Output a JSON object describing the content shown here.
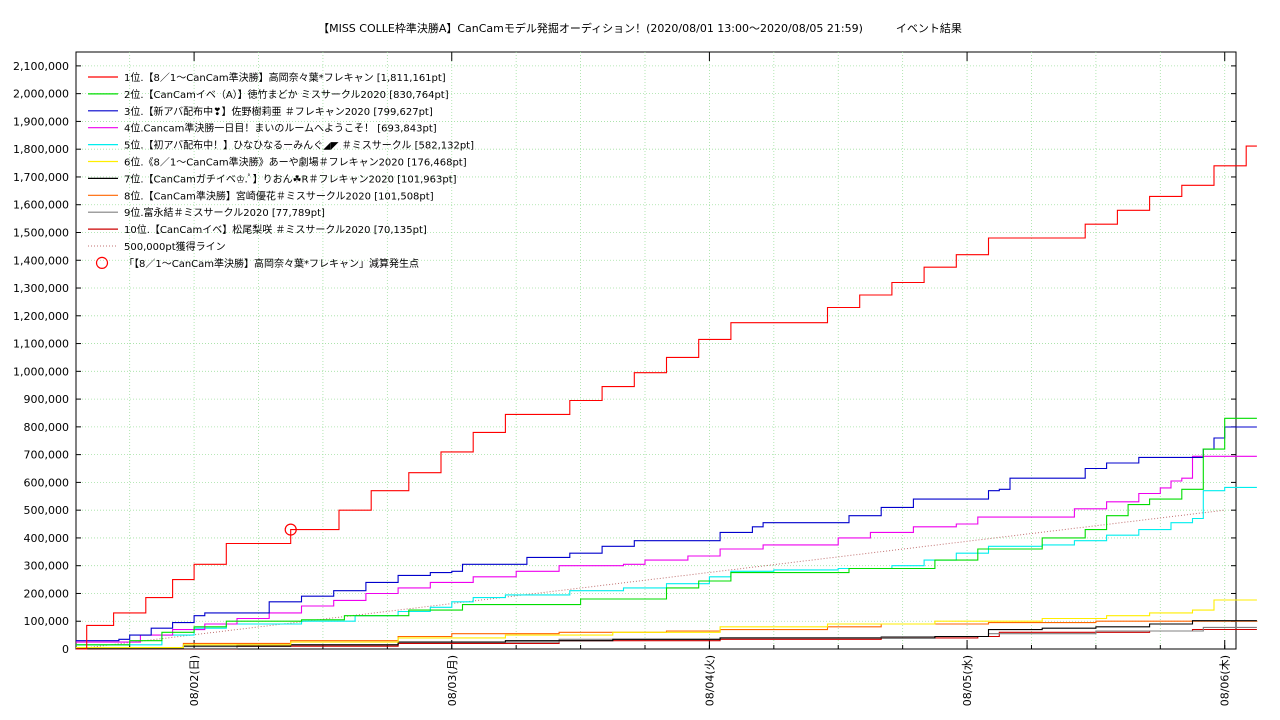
{
  "title": "【MISS COLLE枠準決勝A】CanCamモデル発掘オーディション！(2020/08/01 13:00～2020/08/05 21:59)　　　イベント結果",
  "chart_data": {
    "type": "line",
    "ylim": [
      0,
      2150000
    ],
    "y_ticks": [
      "0",
      "100,000",
      "200,000",
      "300,000",
      "400,000",
      "500,000",
      "600,000",
      "700,000",
      "800,000",
      "900,000",
      "1,000,000",
      "1,100,000",
      "1,200,000",
      "1,300,000",
      "1,400,000",
      "1,500,000",
      "1,600,000",
      "1,700,000",
      "1,800,000",
      "1,900,000",
      "2,000,000",
      "2,100,000"
    ],
    "x_ticks": [
      {
        "label": "08/02(日)",
        "t": 11
      },
      {
        "label": "08/03(月)",
        "t": 35
      },
      {
        "label": "08/04(火)",
        "t": 59
      },
      {
        "label": "08/05(水)",
        "t": 83
      },
      {
        "label": "08/06(木)",
        "t": 107
      }
    ],
    "x_range_hours": [
      0,
      107
    ],
    "grid": true,
    "legend_position": "top-left",
    "series": [
      {
        "name": "1位.【8／1～CanCam準決勝】高岡奈々葉*フレキャン [1,811,161pt]",
        "color": "#ff0000",
        "values": [
          [
            0,
            0
          ],
          [
            1,
            85000
          ],
          [
            3,
            85000
          ],
          [
            3.5,
            130000
          ],
          [
            6,
            130000
          ],
          [
            6.5,
            185000
          ],
          [
            8,
            185000
          ],
          [
            9,
            250000
          ],
          [
            10,
            250000
          ],
          [
            11,
            305000
          ],
          [
            13,
            305000
          ],
          [
            14,
            380000
          ],
          [
            20,
            380000
          ],
          [
            20,
            430000
          ],
          [
            24,
            430000
          ],
          [
            24.5,
            500000
          ],
          [
            27,
            500000
          ],
          [
            27.5,
            570000
          ],
          [
            30,
            570000
          ],
          [
            31,
            635000
          ],
          [
            33,
            635000
          ],
          [
            34,
            710000
          ],
          [
            36,
            710000
          ],
          [
            37,
            780000
          ],
          [
            39,
            780000
          ],
          [
            40,
            845000
          ],
          [
            45,
            845000
          ],
          [
            46,
            895000
          ],
          [
            48,
            895000
          ],
          [
            49,
            945000
          ],
          [
            51,
            945000
          ],
          [
            52,
            995000
          ],
          [
            54,
            995000
          ],
          [
            55,
            1050000
          ],
          [
            57,
            1050000
          ],
          [
            58,
            1115000
          ],
          [
            60,
            1115000
          ],
          [
            61,
            1175000
          ],
          [
            69,
            1175000
          ],
          [
            70,
            1230000
          ],
          [
            72,
            1230000
          ],
          [
            73,
            1275000
          ],
          [
            75,
            1275000
          ],
          [
            76,
            1320000
          ],
          [
            78,
            1320000
          ],
          [
            79,
            1375000
          ],
          [
            81,
            1375000
          ],
          [
            82,
            1420000
          ],
          [
            84,
            1420000
          ],
          [
            85,
            1480000
          ],
          [
            93,
            1480000
          ],
          [
            94,
            1530000
          ],
          [
            96,
            1530000
          ],
          [
            97,
            1580000
          ],
          [
            99,
            1580000
          ],
          [
            100,
            1630000
          ],
          [
            102,
            1630000
          ],
          [
            103,
            1670000
          ],
          [
            105,
            1670000
          ],
          [
            106,
            1740000
          ],
          [
            108,
            1740000
          ],
          [
            109,
            1811161
          ],
          [
            110,
            1811161
          ]
        ]
      },
      {
        "name": "2位.【CanCamイベ（A）】徳竹まどか ミスサークル2020 [830,764pt]",
        "color": "#00dd00",
        "values": [
          [
            0,
            15000
          ],
          [
            5,
            30000
          ],
          [
            8,
            60000
          ],
          [
            11,
            80000
          ],
          [
            14,
            100000
          ],
          [
            21,
            105000
          ],
          [
            25,
            120000
          ],
          [
            31,
            140000
          ],
          [
            35,
            140000
          ],
          [
            36,
            160000
          ],
          [
            45,
            160000
          ],
          [
            47,
            180000
          ],
          [
            55,
            220000
          ],
          [
            58,
            245000
          ],
          [
            60,
            245000
          ],
          [
            61,
            275000
          ],
          [
            71,
            275000
          ],
          [
            72,
            290000
          ],
          [
            79,
            290000
          ],
          [
            80,
            320000
          ],
          [
            83,
            320000
          ],
          [
            84,
            360000
          ],
          [
            88,
            360000
          ],
          [
            90,
            400000
          ],
          [
            94,
            430000
          ],
          [
            96,
            480000
          ],
          [
            98,
            520000
          ],
          [
            100,
            540000
          ],
          [
            103,
            575000
          ],
          [
            104,
            575000
          ],
          [
            105,
            720000
          ],
          [
            107,
            830764
          ],
          [
            110,
            830764
          ]
        ]
      },
      {
        "name": "3位.【新アバ配布中❣】佐野樹莉亜 ＃フレキャン2020 [799,627pt]",
        "color": "#0000cc",
        "values": [
          [
            0,
            30000
          ],
          [
            4,
            35000
          ],
          [
            5,
            50000
          ],
          [
            7,
            75000
          ],
          [
            9,
            95000
          ],
          [
            11,
            120000
          ],
          [
            12,
            130000
          ],
          [
            17,
            130000
          ],
          [
            18,
            170000
          ],
          [
            21,
            190000
          ],
          [
            24,
            210000
          ],
          [
            27,
            240000
          ],
          [
            30,
            265000
          ],
          [
            33,
            275000
          ],
          [
            35,
            280000
          ],
          [
            36,
            305000
          ],
          [
            41,
            305000
          ],
          [
            42,
            330000
          ],
          [
            46,
            345000
          ],
          [
            49,
            370000
          ],
          [
            52,
            390000
          ],
          [
            58,
            390000
          ],
          [
            60,
            420000
          ],
          [
            63,
            440000
          ],
          [
            64,
            455000
          ],
          [
            70,
            455000
          ],
          [
            72,
            480000
          ],
          [
            75,
            510000
          ],
          [
            78,
            540000
          ],
          [
            84,
            540000
          ],
          [
            85,
            570000
          ],
          [
            86,
            575000
          ],
          [
            87,
            615000
          ],
          [
            93,
            615000
          ],
          [
            94,
            650000
          ],
          [
            96,
            670000
          ],
          [
            99,
            690000
          ],
          [
            104,
            690000
          ],
          [
            105,
            720000
          ],
          [
            106,
            760000
          ],
          [
            107,
            799627
          ],
          [
            110,
            799627
          ]
        ]
      },
      {
        "name": "4位.Cancam準決勝一日目！まいのルームへようこそ！ [693,843pt]",
        "color": "#ee00ee",
        "values": [
          [
            0,
            25000
          ],
          [
            6,
            50000
          ],
          [
            9,
            70000
          ],
          [
            12,
            90000
          ],
          [
            15,
            110000
          ],
          [
            18,
            130000
          ],
          [
            21,
            155000
          ],
          [
            24,
            175000
          ],
          [
            27,
            200000
          ],
          [
            30,
            220000
          ],
          [
            33,
            240000
          ],
          [
            37,
            260000
          ],
          [
            41,
            280000
          ],
          [
            45,
            300000
          ],
          [
            51,
            305000
          ],
          [
            53,
            320000
          ],
          [
            57,
            335000
          ],
          [
            60,
            360000
          ],
          [
            64,
            375000
          ],
          [
            69,
            375000
          ],
          [
            71,
            400000
          ],
          [
            74,
            420000
          ],
          [
            78,
            440000
          ],
          [
            82,
            450000
          ],
          [
            84,
            475000
          ],
          [
            91,
            475000
          ],
          [
            93,
            505000
          ],
          [
            96,
            530000
          ],
          [
            99,
            560000
          ],
          [
            101,
            580000
          ],
          [
            102,
            605000
          ],
          [
            103,
            615000
          ],
          [
            104,
            693843
          ],
          [
            110,
            693843
          ]
        ]
      },
      {
        "name": "5位.【初アバ配布中！】ひなひなるーみんぐ◢◤ ＃ミスサークル [582,132pt]",
        "color": "#00eeee",
        "values": [
          [
            0,
            15000
          ],
          [
            8,
            50000
          ],
          [
            11,
            75000
          ],
          [
            14,
            90000
          ],
          [
            21,
            100000
          ],
          [
            26,
            120000
          ],
          [
            30,
            135000
          ],
          [
            33,
            150000
          ],
          [
            35,
            170000
          ],
          [
            37,
            185000
          ],
          [
            40,
            195000
          ],
          [
            46,
            210000
          ],
          [
            51,
            220000
          ],
          [
            55,
            235000
          ],
          [
            59,
            260000
          ],
          [
            61,
            280000
          ],
          [
            65,
            285000
          ],
          [
            71,
            290000
          ],
          [
            76,
            300000
          ],
          [
            79,
            320000
          ],
          [
            82,
            345000
          ],
          [
            85,
            370000
          ],
          [
            90,
            375000
          ],
          [
            93,
            390000
          ],
          [
            96,
            410000
          ],
          [
            99,
            430000
          ],
          [
            102,
            455000
          ],
          [
            104,
            470000
          ],
          [
            105,
            570000
          ],
          [
            107,
            582132
          ],
          [
            110,
            582132
          ]
        ]
      },
      {
        "name": "6位.《8／1～CanCam準決勝》あーや劇場＃フレキャン2020 [176,468pt]",
        "color": "#ffee00",
        "values": [
          [
            0,
            5000
          ],
          [
            10,
            15000
          ],
          [
            20,
            25000
          ],
          [
            30,
            40000
          ],
          [
            40,
            50000
          ],
          [
            50,
            60000
          ],
          [
            60,
            80000
          ],
          [
            70,
            90000
          ],
          [
            80,
            100000
          ],
          [
            90,
            110000
          ],
          [
            96,
            120000
          ],
          [
            100,
            130000
          ],
          [
            104,
            140000
          ],
          [
            106,
            176468
          ],
          [
            110,
            176468
          ]
        ]
      },
      {
        "name": "7位.【CanCamガチイベ♔.ﾟ】りおん☘R＃フレキャン2020 [101,963pt]",
        "color": "#000000",
        "values": [
          [
            0,
            3000
          ],
          [
            10,
            10000
          ],
          [
            20,
            15000
          ],
          [
            30,
            25000
          ],
          [
            40,
            30000
          ],
          [
            50,
            35000
          ],
          [
            60,
            40000
          ],
          [
            70,
            40000
          ],
          [
            80,
            45000
          ],
          [
            85,
            70000
          ],
          [
            90,
            75000
          ],
          [
            95,
            80000
          ],
          [
            100,
            90000
          ],
          [
            104,
            101963
          ],
          [
            110,
            101963
          ]
        ]
      },
      {
        "name": "8位.【CanCam準決勝】宮崎優花＃ミスサークル2020 [101,508pt]",
        "color": "#ff6600",
        "values": [
          [
            0,
            5000
          ],
          [
            10,
            20000
          ],
          [
            20,
            30000
          ],
          [
            30,
            45000
          ],
          [
            35,
            55000
          ],
          [
            45,
            60000
          ],
          [
            55,
            65000
          ],
          [
            60,
            70000
          ],
          [
            70,
            80000
          ],
          [
            75,
            90000
          ],
          [
            85,
            95000
          ],
          [
            95,
            100000
          ],
          [
            110,
            101508
          ]
        ]
      },
      {
        "name": "9位.富永結＃ミスサークル2020 [77,789pt]",
        "color": "#808080",
        "values": [
          [
            0,
            2000
          ],
          [
            15,
            15000
          ],
          [
            30,
            25000
          ],
          [
            45,
            35000
          ],
          [
            60,
            40000
          ],
          [
            75,
            45000
          ],
          [
            85,
            55000
          ],
          [
            95,
            65000
          ],
          [
            105,
            77789
          ],
          [
            110,
            77789
          ]
        ]
      },
      {
        "name": "10位.【CanCamイベ】松尾梨咲 ＃ミスサークル2020 [70,135pt]",
        "color": "#cc0000",
        "values": [
          [
            0,
            1000
          ],
          [
            15,
            10000
          ],
          [
            30,
            20000
          ],
          [
            45,
            30000
          ],
          [
            60,
            35000
          ],
          [
            75,
            40000
          ],
          [
            84,
            45000
          ],
          [
            86,
            60000
          ],
          [
            100,
            65000
          ],
          [
            104,
            70135
          ],
          [
            110,
            70135
          ]
        ]
      }
    ],
    "reference_line": {
      "name": "500,000pt獲得ライン",
      "color": "#c07070",
      "points": [
        [
          0,
          0
        ],
        [
          107,
          500000
        ]
      ]
    },
    "marker": {
      "name": "「【8／1～CanCam準決勝】高岡奈々葉*フレキャン」減算発生点",
      "color": "#ff0000",
      "point": [
        20,
        430000
      ]
    }
  }
}
